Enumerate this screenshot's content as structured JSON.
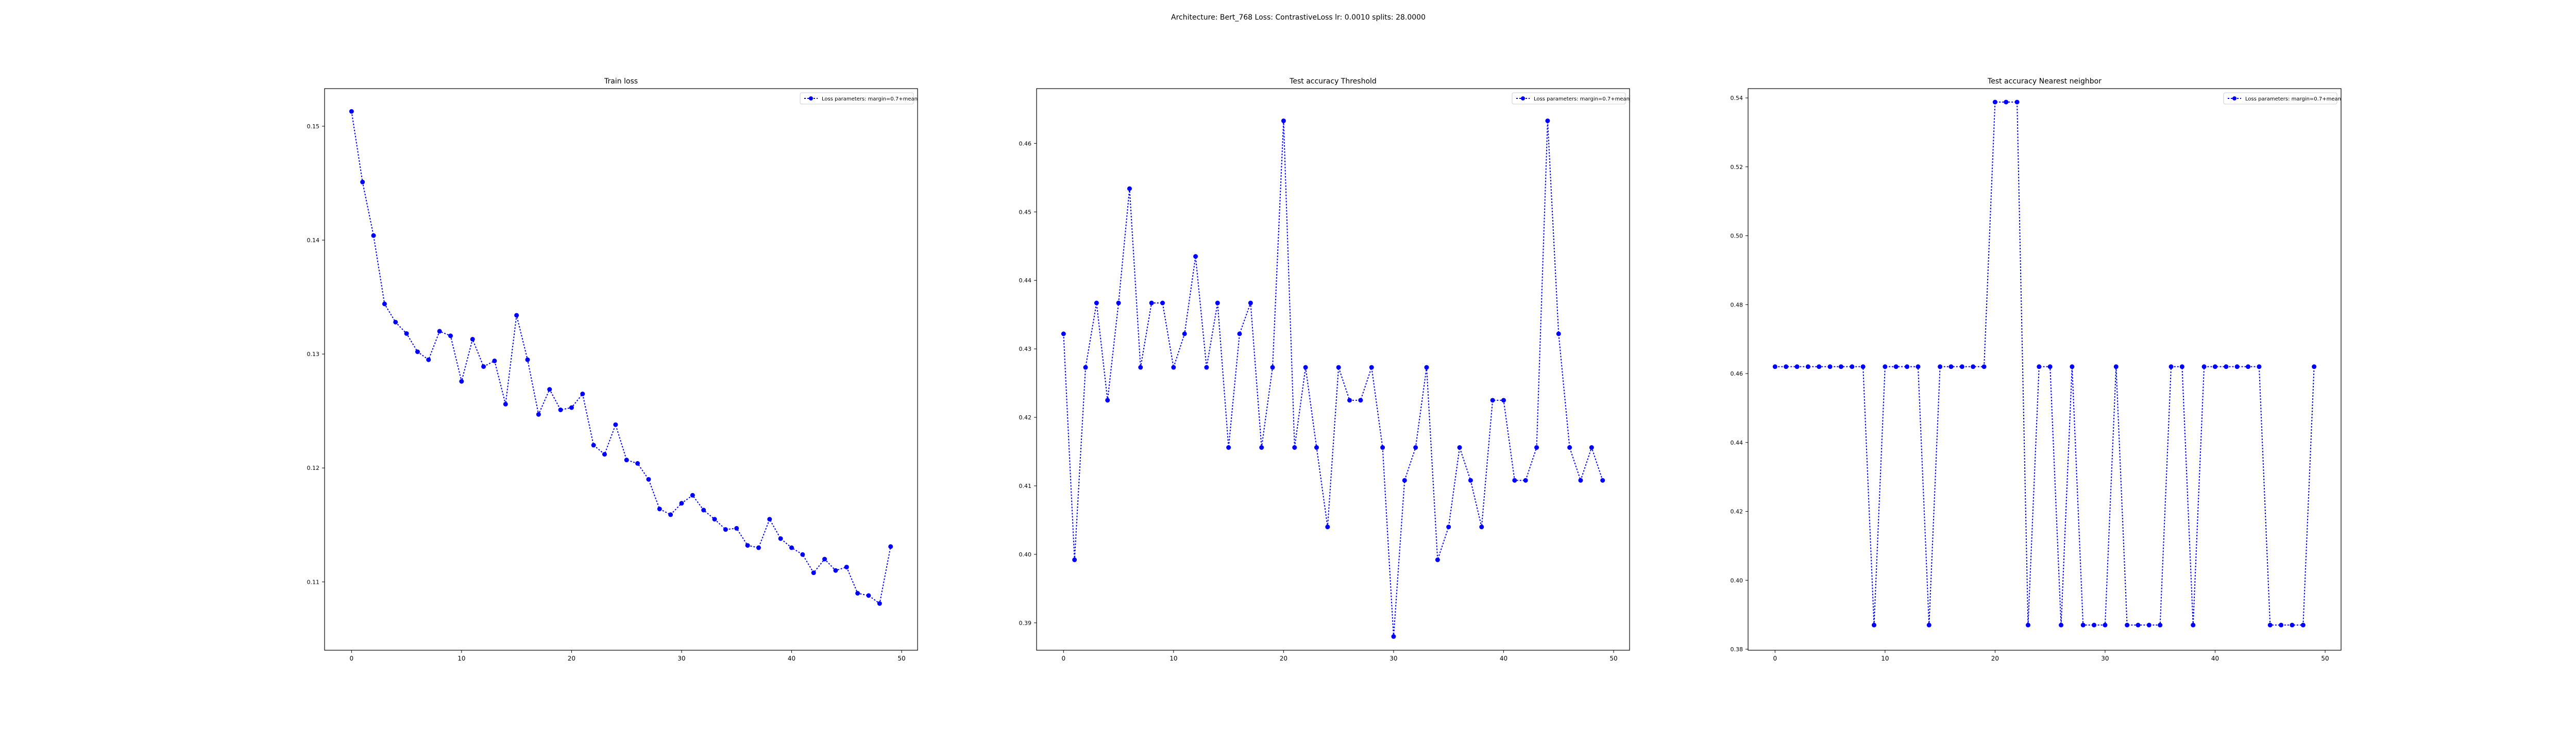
{
  "suptitle": "Architecture: Bert_768 Loss: ContrastiveLoss lr: 0.0010 splits: 28.0000",
  "colors": {
    "series": "#0000ff",
    "axes": "#000000",
    "background": "#ffffff"
  },
  "chart_data": [
    {
      "type": "line",
      "title": "Train loss",
      "xlabel": "",
      "ylabel": "",
      "grid": false,
      "legend_position": "top-right",
      "xlim": [
        -2.45,
        51.45
      ],
      "ylim": [
        0.104,
        0.1533
      ],
      "xticks": [
        0,
        10,
        20,
        30,
        40,
        50
      ],
      "xtick_labels": [
        "0",
        "10",
        "20",
        "30",
        "40",
        "50"
      ],
      "yticks": [
        0.11,
        0.12,
        0.13,
        0.14,
        0.15
      ],
      "ytick_labels": [
        "0.11",
        "0.12",
        "0.13",
        "0.14",
        "0.15"
      ],
      "series": [
        {
          "name": "Loss parameters: margin=0.7+mean",
          "style": "dotted line with circle markers",
          "x": [
            0,
            1,
            2,
            3,
            4,
            5,
            6,
            7,
            8,
            9,
            10,
            11,
            12,
            13,
            14,
            15,
            16,
            17,
            18,
            19,
            20,
            21,
            22,
            23,
            24,
            25,
            26,
            27,
            28,
            29,
            30,
            31,
            32,
            33,
            34,
            35,
            36,
            37,
            38,
            39,
            40,
            41,
            42,
            43,
            44,
            45,
            46,
            47,
            48,
            49
          ],
          "values": [
            0.1513,
            0.1451,
            0.1404,
            0.1344,
            0.1328,
            0.1318,
            0.1302,
            0.1295,
            0.132,
            0.1316,
            0.1276,
            0.1313,
            0.1289,
            0.1294,
            0.1256,
            0.1334,
            0.1295,
            0.1247,
            0.1269,
            0.1251,
            0.1253,
            0.1265,
            0.122,
            0.1212,
            0.1238,
            0.1207,
            0.1204,
            0.119,
            0.1164,
            0.1159,
            0.1169,
            0.1176,
            0.1163,
            0.1155,
            0.1146,
            0.1147,
            0.1132,
            0.113,
            0.1155,
            0.1138,
            0.113,
            0.1124,
            0.1108,
            0.112,
            0.111,
            0.1113,
            0.109,
            0.1088,
            0.1081,
            0.1131
          ]
        }
      ]
    },
    {
      "type": "line",
      "title": "Test accuracy Threshold",
      "xlabel": "",
      "ylabel": "",
      "grid": false,
      "legend_position": "top-right",
      "xlim": [
        -2.45,
        51.45
      ],
      "ylim": [
        0.386,
        0.468
      ],
      "xticks": [
        0,
        10,
        20,
        30,
        40,
        50
      ],
      "xtick_labels": [
        "0",
        "10",
        "20",
        "30",
        "40",
        "50"
      ],
      "yticks": [
        0.39,
        0.4,
        0.41,
        0.42,
        0.43,
        0.44,
        0.45,
        0.46
      ],
      "ytick_labels": [
        "0.39",
        "0.40",
        "0.41",
        "0.42",
        "0.43",
        "0.44",
        "0.45",
        "0.46"
      ],
      "series": [
        {
          "name": "Loss parameters: margin=0.7+mean",
          "style": "dotted line with circle markers",
          "x": [
            0,
            1,
            2,
            3,
            4,
            5,
            6,
            7,
            8,
            9,
            10,
            11,
            12,
            13,
            14,
            15,
            16,
            17,
            18,
            19,
            20,
            21,
            22,
            23,
            24,
            25,
            26,
            27,
            28,
            29,
            30,
            31,
            32,
            33,
            34,
            35,
            36,
            37,
            38,
            39,
            40,
            41,
            42,
            43,
            44,
            45,
            46,
            47,
            48,
            49
          ],
          "values": [
            0.4322,
            0.3992,
            0.4273,
            0.4367,
            0.4225,
            0.4367,
            0.4534,
            0.4273,
            0.4367,
            0.4367,
            0.4273,
            0.4322,
            0.4435,
            0.4273,
            0.4367,
            0.4156,
            0.4322,
            0.4367,
            0.4156,
            0.4273,
            0.4633,
            0.4156,
            0.4273,
            0.4156,
            0.404,
            0.4273,
            0.4225,
            0.4225,
            0.4273,
            0.4156,
            0.388,
            0.4108,
            0.4156,
            0.4273,
            0.3992,
            0.404,
            0.4156,
            0.4108,
            0.404,
            0.4225,
            0.4225,
            0.4108,
            0.4108,
            0.4156,
            0.4633,
            0.4322,
            0.4156,
            0.4108,
            0.4156,
            0.4108
          ]
        }
      ]
    },
    {
      "type": "line",
      "title": "Test accuracy Nearest neighbor",
      "xlabel": "",
      "ylabel": "",
      "grid": false,
      "legend_position": "top-right",
      "xlim": [
        -2.45,
        51.45
      ],
      "ylim": [
        0.3797,
        0.5427
      ],
      "xticks": [
        0,
        10,
        20,
        30,
        40,
        50
      ],
      "xtick_labels": [
        "0",
        "10",
        "20",
        "30",
        "40",
        "50"
      ],
      "yticks": [
        0.38,
        0.4,
        0.42,
        0.44,
        0.46,
        0.48,
        0.5,
        0.52,
        0.54
      ],
      "ytick_labels": [
        "0.38",
        "0.40",
        "0.42",
        "0.44",
        "0.46",
        "0.48",
        "0.50",
        "0.52",
        "0.54"
      ],
      "series": [
        {
          "name": "Loss parameters: margin=0.7+mean",
          "style": "dotted line with circle markers",
          "x": [
            0,
            1,
            2,
            3,
            4,
            5,
            6,
            7,
            8,
            9,
            10,
            11,
            12,
            13,
            14,
            15,
            16,
            17,
            18,
            19,
            20,
            21,
            22,
            23,
            24,
            25,
            26,
            27,
            28,
            29,
            30,
            31,
            32,
            33,
            34,
            35,
            36,
            37,
            38,
            39,
            40,
            41,
            42,
            43,
            44,
            45,
            46,
            47,
            48,
            49
          ],
          "values": [
            0.462,
            0.462,
            0.462,
            0.462,
            0.462,
            0.462,
            0.462,
            0.462,
            0.462,
            0.387,
            0.462,
            0.462,
            0.462,
            0.462,
            0.387,
            0.462,
            0.462,
            0.462,
            0.462,
            0.462,
            0.5388,
            0.5388,
            0.5388,
            0.387,
            0.462,
            0.462,
            0.387,
            0.462,
            0.387,
            0.387,
            0.387,
            0.462,
            0.387,
            0.387,
            0.387,
            0.387,
            0.462,
            0.462,
            0.387,
            0.462,
            0.462,
            0.462,
            0.462,
            0.462,
            0.462,
            0.387,
            0.387,
            0.387,
            0.387,
            0.462
          ]
        }
      ]
    }
  ]
}
